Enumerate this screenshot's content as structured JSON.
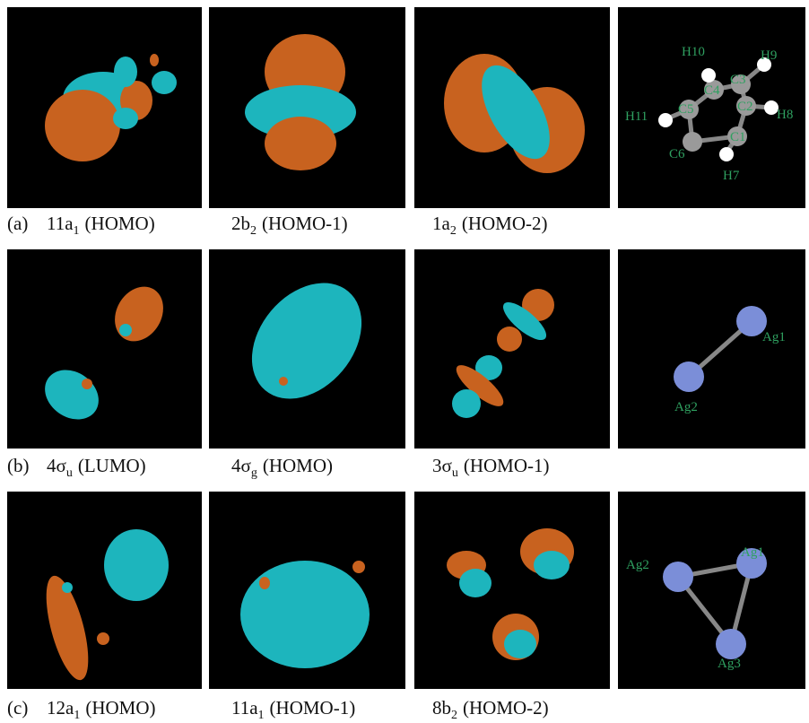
{
  "rows": [
    {
      "label": "(a)",
      "captions": [
        {
          "name": "11a",
          "sub": "1",
          "note": "(HOMO)"
        },
        {
          "name": "2b",
          "sub": "2",
          "note": "(HOMO-1)"
        },
        {
          "name": "1a",
          "sub": "2",
          "note": "(HOMO-2)"
        }
      ],
      "atoms": [
        "H10",
        "H9",
        "C3",
        "C4",
        "C5",
        "C2",
        "H11",
        "H8",
        "C1",
        "C6",
        "H7"
      ]
    },
    {
      "label": "(b)",
      "captions": [
        {
          "name": "4σ",
          "sub": "u",
          "note": "(LUMO)"
        },
        {
          "name": "4σ",
          "sub": "g",
          "note": "(HOMO)"
        },
        {
          "name": "3σ",
          "sub": "u",
          "note": "(HOMO-1)"
        }
      ],
      "atoms": [
        "Ag1",
        "Ag2"
      ]
    },
    {
      "label": "(c)",
      "captions": [
        {
          "name": "12a",
          "sub": "1",
          "note": "(HOMO)"
        },
        {
          "name": "11a",
          "sub": "1",
          "note": "(HOMO-1)"
        },
        {
          "name": "8b",
          "sub": "2",
          "note": "(HOMO-2)"
        }
      ],
      "atoms": [
        "Ag2",
        "Ag1",
        "Ag3"
      ]
    }
  ]
}
